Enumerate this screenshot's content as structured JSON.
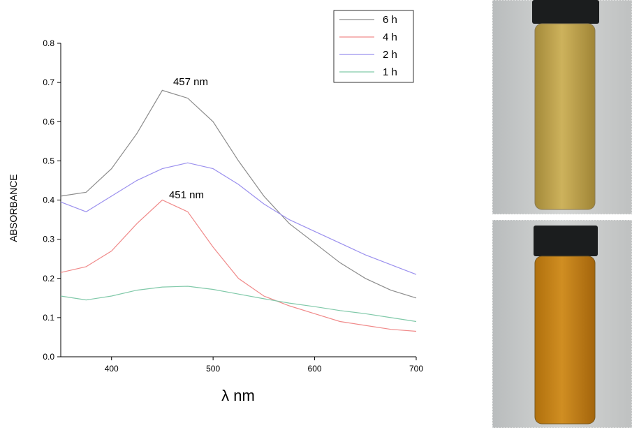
{
  "chart_data": {
    "type": "line",
    "y_label": "ABSORBANCE",
    "x_label": "λ nm",
    "annotations": [
      "457 nm",
      "451 nm"
    ],
    "x": [
      350,
      375,
      400,
      425,
      450,
      475,
      500,
      525,
      550,
      575,
      600,
      625,
      650,
      675,
      700
    ],
    "series": [
      {
        "name": "6 h",
        "color": "#8c8c8c",
        "values": [
          0.41,
          0.42,
          0.48,
          0.57,
          0.68,
          0.66,
          0.6,
          0.5,
          0.41,
          0.34,
          0.29,
          0.24,
          0.2,
          0.17,
          0.15
        ]
      },
      {
        "name": "4 h",
        "color": "#f08a8a",
        "values": [
          0.215,
          0.23,
          0.27,
          0.34,
          0.4,
          0.37,
          0.28,
          0.2,
          0.155,
          0.13,
          0.11,
          0.09,
          0.08,
          0.07,
          0.065
        ]
      },
      {
        "name": "2 h",
        "color": "#9b90ee",
        "values": [
          0.395,
          0.37,
          0.41,
          0.45,
          0.48,
          0.495,
          0.48,
          0.44,
          0.39,
          0.35,
          0.32,
          0.29,
          0.26,
          0.235,
          0.21
        ]
      },
      {
        "name": "1 h",
        "color": "#80c9a9",
        "values": [
          0.155,
          0.145,
          0.155,
          0.17,
          0.178,
          0.18,
          0.172,
          0.16,
          0.148,
          0.137,
          0.128,
          0.118,
          0.11,
          0.1,
          0.09
        ]
      }
    ],
    "xlim": [
      350,
      700
    ],
    "xticks": [
      400,
      500,
      600,
      700
    ],
    "ylim": [
      0,
      0.8
    ],
    "yticks": [
      {
        "value": 0,
        "label": "0.0"
      },
      0.1,
      0.2,
      0.3,
      0.4,
      0.5,
      0.6,
      0.7,
      0.8
    ],
    "legend": "top-right"
  }
}
